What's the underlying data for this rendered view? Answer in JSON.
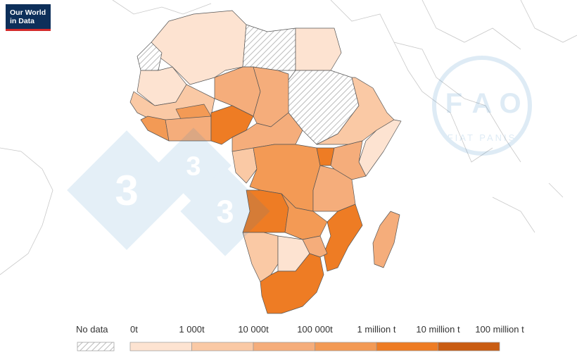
{
  "logo": {
    "lines": [
      "Our World",
      "in Data"
    ]
  },
  "watermark": {
    "site": [
      "3",
      "3",
      "3"
    ],
    "fao": [
      "F",
      "A",
      "O"
    ],
    "motto": "FIAT PANIS"
  },
  "legend": {
    "no_data": "No data",
    "labels": [
      "0t",
      "1 000t",
      "10 000t",
      "100 000t",
      "1 million t",
      "10 million t",
      "100 million t"
    ],
    "colors": [
      "#fde3d1",
      "#fac9a5",
      "#f5ad7b",
      "#f39a55",
      "#ee7c24",
      "#c95c12"
    ]
  }
}
